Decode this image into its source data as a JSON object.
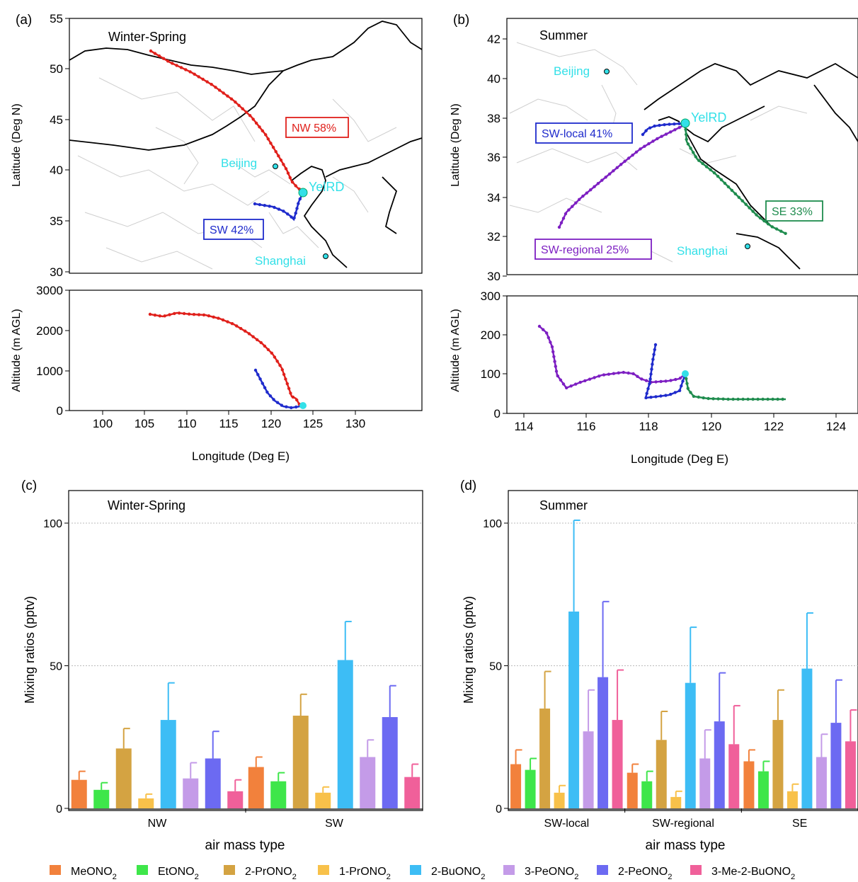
{
  "panel_labels": [
    "(a)",
    "(b)",
    "(c)",
    "(d)"
  ],
  "map_a": {
    "season": "Winter-Spring",
    "ylabel_top": "Latitude (Deg N)",
    "ylabel_bottom": "Altitude (m AGL)",
    "xlabel": "Longitude (Deg E)",
    "lat_ticks": [
      "55",
      "50",
      "45",
      "40",
      "35",
      "30"
    ],
    "alt_ticks": [
      "3000",
      "2000",
      "1000",
      "0"
    ],
    "lon_ticks": [
      "100",
      "105",
      "110",
      "115",
      "120",
      "125",
      "130"
    ],
    "cities": [
      "Beijing",
      "YelRD",
      "Shanghai"
    ],
    "cluster_labels": [
      "NW 58%",
      "SW 42%"
    ]
  },
  "map_b": {
    "season": "Summer",
    "ylabel_top": "Latitude (Deg N)",
    "ylabel_bottom": "Altitude (m AGL)",
    "xlabel": "Longitude (Deg E)",
    "lat_ticks": [
      "42",
      "40",
      "38",
      "36",
      "34",
      "32",
      "30"
    ],
    "alt_ticks": [
      "300",
      "200",
      "100",
      "0"
    ],
    "lon_ticks": [
      "114",
      "116",
      "118",
      "120",
      "122",
      "124"
    ],
    "cities": [
      "Beijing",
      "YelRD",
      "Shanghai"
    ],
    "cluster_labels": [
      "SW-local 41%",
      "SE 33%",
      "SW-regional 25%"
    ]
  },
  "colors": {
    "NW": "#e0201b",
    "SW": "#1f2bcc",
    "SW-local": "#1f2bcc",
    "SW-regional": "#7d1fc2",
    "SE": "#1f8c4e",
    "city": "#33e0e8",
    "grid": "#bbbbbb"
  },
  "legend": [
    "MeONO2",
    "EtONO2",
    "2-PrONO2",
    "1-PrONO2",
    "2-BuONO2",
    "3-PeONO2",
    "2-PeONO2",
    "3-Me-2-BuONO2"
  ],
  "chart_data": [
    {
      "type": "bar",
      "title": "Winter-Spring",
      "xlabel": "air mass type",
      "ylabel": "Mixing ratios (pptv)",
      "ylim": [
        0,
        110
      ],
      "yticks": [
        0,
        50,
        100
      ],
      "categories": [
        "NW",
        "SW"
      ],
      "series": [
        {
          "name": "MeONO2",
          "color": "#f2813c",
          "values": [
            10,
            14.5
          ],
          "errors": [
            3,
            3.5
          ]
        },
        {
          "name": "EtONO2",
          "color": "#3ee64a",
          "values": [
            6.5,
            9.5
          ],
          "errors": [
            2.5,
            3
          ]
        },
        {
          "name": "2-PrONO2",
          "color": "#d4a342",
          "values": [
            21,
            32.5
          ],
          "errors": [
            7,
            7.5
          ]
        },
        {
          "name": "1-PrONO2",
          "color": "#f8c14a",
          "values": [
            3.5,
            5.5
          ],
          "errors": [
            1.5,
            2
          ]
        },
        {
          "name": "2-BuONO2",
          "color": "#3dbdf5",
          "values": [
            31,
            52
          ],
          "errors": [
            13,
            13.5
          ]
        },
        {
          "name": "3-PeONO2",
          "color": "#c49be8",
          "values": [
            10.5,
            18
          ],
          "errors": [
            5.5,
            6
          ]
        },
        {
          "name": "2-PeONO2",
          "color": "#6c6af2",
          "values": [
            17.5,
            32
          ],
          "errors": [
            9.5,
            11
          ]
        },
        {
          "name": "3-Me-2-BuONO2",
          "color": "#f0609a",
          "values": [
            6,
            11
          ],
          "errors": [
            4,
            4.5
          ]
        }
      ]
    },
    {
      "type": "bar",
      "title": "Summer",
      "xlabel": "air mass type",
      "ylabel": "Mixing ratios (pptv)",
      "ylim": [
        0,
        110
      ],
      "yticks": [
        0,
        50,
        100
      ],
      "categories": [
        "SW-local",
        "SW-regional",
        "SE"
      ],
      "series": [
        {
          "name": "MeONO2",
          "color": "#f2813c",
          "values": [
            15.5,
            12.5,
            16.5
          ],
          "errors": [
            5,
            3,
            4
          ]
        },
        {
          "name": "EtONO2",
          "color": "#3ee64a",
          "values": [
            13.5,
            9.5,
            13
          ],
          "errors": [
            4,
            3.5,
            3.5
          ]
        },
        {
          "name": "2-PrONO2",
          "color": "#d4a342",
          "values": [
            35,
            24,
            31
          ],
          "errors": [
            13,
            10,
            10.5
          ]
        },
        {
          "name": "1-PrONO2",
          "color": "#f8c14a",
          "values": [
            5.5,
            4,
            6
          ],
          "errors": [
            2.5,
            2,
            2.5
          ]
        },
        {
          "name": "2-BuONO2",
          "color": "#3dbdf5",
          "values": [
            69,
            44,
            49
          ],
          "errors": [
            32,
            19.5,
            19.5
          ]
        },
        {
          "name": "3-PeONO2",
          "color": "#c49be8",
          "values": [
            27,
            17.5,
            18
          ],
          "errors": [
            14.5,
            10,
            8
          ]
        },
        {
          "name": "2-PeONO2",
          "color": "#6c6af2",
          "values": [
            46,
            30.5,
            30
          ],
          "errors": [
            26.5,
            17,
            15
          ]
        },
        {
          "name": "3-Me-2-BuONO2",
          "color": "#f0609a",
          "values": [
            31,
            22.5,
            23.5
          ],
          "errors": [
            17.5,
            13.5,
            11
          ]
        }
      ]
    }
  ]
}
